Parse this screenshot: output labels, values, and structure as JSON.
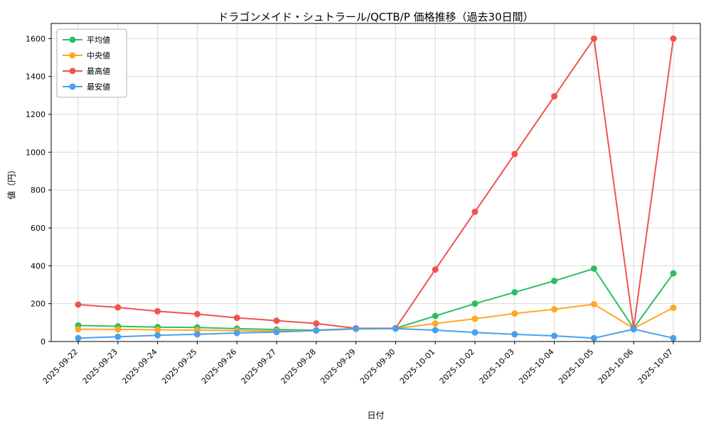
{
  "chart_data": {
    "type": "line",
    "title": "ドラゴンメイド・シュトラール/QCTB/P 価格推移（過去30日間）",
    "xlabel": "日付",
    "ylabel": "値（円）",
    "categories": [
      "2025-09-22",
      "2025-09-23",
      "2025-09-24",
      "2025-09-25",
      "2025-09-26",
      "2025-09-27",
      "2025-09-28",
      "2025-09-29",
      "2025-09-30",
      "2025-10-01",
      "2025-10-02",
      "2025-10-03",
      "2025-10-04",
      "2025-10-05",
      "2025-10-06",
      "2025-10-07"
    ],
    "yticks": [
      0,
      200,
      400,
      600,
      800,
      1000,
      1200,
      1400,
      1600
    ],
    "ylim": [
      0,
      1680
    ],
    "grid": true,
    "legend_position": "upper left",
    "colors": {
      "average": "#2dbe64",
      "median": "#ffa726",
      "highest": "#ef5350",
      "lowest": "#4aa0ec",
      "grid": "#d9d9d9",
      "axis": "#000000"
    },
    "series": [
      {
        "key": "average",
        "name": "平均値",
        "color": "#2dbe64",
        "values": [
          85,
          80,
          76,
          74,
          68,
          63,
          60,
          68,
          70,
          135,
          200,
          260,
          320,
          385,
          70,
          360
        ]
      },
      {
        "key": "median",
        "name": "中央値",
        "color": "#ffa726",
        "values": [
          65,
          64,
          62,
          60,
          57,
          55,
          58,
          66,
          68,
          95,
          120,
          148,
          170,
          197,
          70,
          178
        ]
      },
      {
        "key": "highest",
        "name": "最高値",
        "color": "#ef5350",
        "values": [
          195,
          180,
          160,
          145,
          125,
          110,
          95,
          70,
          70,
          380,
          685,
          990,
          1295,
          1600,
          70,
          1600
        ]
      },
      {
        "key": "lowest",
        "name": "最安値",
        "color": "#4aa0ec",
        "values": [
          18,
          25,
          33,
          38,
          45,
          50,
          58,
          68,
          68,
          60,
          48,
          38,
          30,
          18,
          65,
          18
        ]
      }
    ]
  }
}
